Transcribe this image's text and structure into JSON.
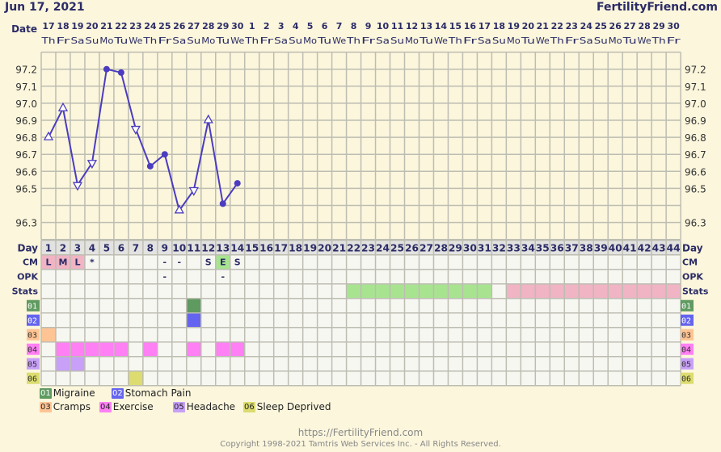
{
  "header": {
    "date_title": "Jun 17, 2021",
    "brand": "FertilityFriend.com"
  },
  "chart_data": {
    "type": "line",
    "title": "Jun 17, 2021",
    "date_label": "Date",
    "dates": [
      "17",
      "18",
      "19",
      "20",
      "21",
      "22",
      "23",
      "24",
      "25",
      "26",
      "27",
      "28",
      "29",
      "30",
      "1",
      "2",
      "3",
      "4",
      "5",
      "6",
      "7",
      "8",
      "9",
      "10",
      "11",
      "12",
      "13",
      "14",
      "15",
      "16",
      "17",
      "18",
      "19",
      "20",
      "21",
      "22",
      "23",
      "24",
      "25",
      "26",
      "27",
      "28",
      "29",
      "30"
    ],
    "weekdays": [
      "Th",
      "Fr",
      "Sa",
      "Su",
      "Mo",
      "Tu",
      "We",
      "Th",
      "Fr",
      "Sa",
      "Su",
      "Mo",
      "Tu",
      "We",
      "Th",
      "Fr",
      "Sa",
      "Su",
      "Mo",
      "Tu",
      "We",
      "Th",
      "Fr",
      "Sa",
      "Su",
      "Mo",
      "Tu",
      "We",
      "Th",
      "Fr",
      "Sa",
      "Su",
      "Mo",
      "Tu",
      "We",
      "Th",
      "Fr",
      "Sa",
      "Su",
      "Mo",
      "Tu",
      "We",
      "Th",
      "Fr"
    ],
    "ylim": [
      96.2,
      97.3
    ],
    "y_ticks": [
      "97.2",
      "97.1",
      "97.0",
      "96.9",
      "96.8",
      "96.7",
      "96.6",
      "96.5",
      "96.3"
    ],
    "temperatures": [
      96.8,
      96.97,
      96.52,
      96.65,
      97.2,
      97.18,
      96.85,
      96.63,
      96.7,
      96.37,
      96.49,
      96.9,
      96.41,
      96.53
    ],
    "markers": [
      "up",
      "up",
      "down",
      "down",
      "circle",
      "circle",
      "down",
      "circle",
      "circle",
      "up",
      "down",
      "up",
      "circle",
      "circle"
    ],
    "line_color": "#4b3cc0",
    "row_labels": {
      "day": "Day",
      "cm": "CM",
      "opk": "OPK",
      "stats": "Stats"
    },
    "day_count": 44,
    "cm": [
      {
        "day": 1,
        "value": "L",
        "bg": "#f0b4c4"
      },
      {
        "day": 2,
        "value": "M",
        "bg": "#f0b4c4"
      },
      {
        "day": 3,
        "value": "L",
        "bg": "#f0b4c4"
      },
      {
        "day": 4,
        "value": "*"
      },
      {
        "day": 9,
        "value": "-"
      },
      {
        "day": 10,
        "value": "-"
      },
      {
        "day": 12,
        "value": "S"
      },
      {
        "day": 13,
        "value": "E",
        "bg": "#a8e490"
      },
      {
        "day": 14,
        "value": "S"
      }
    ],
    "opk": [
      {
        "day": 9,
        "value": "-"
      },
      {
        "day": 13,
        "value": "-"
      }
    ],
    "stats": [
      {
        "from": 22,
        "to": 31,
        "color": "#a8e490"
      },
      {
        "from": 33,
        "to": 44,
        "color": "#f0b4c4"
      }
    ],
    "symptoms": [
      {
        "code": "01",
        "label": "Migraine",
        "color": "#5f9a60",
        "text": "#ffffff",
        "days": [
          11
        ]
      },
      {
        "code": "02",
        "label": "Stomach Pain",
        "color": "#6464f0",
        "text": "#ffffff",
        "days": [
          11
        ]
      },
      {
        "code": "03",
        "label": "Cramps",
        "color": "#ffc494",
        "text": "#333333",
        "days": [
          1
        ]
      },
      {
        "code": "04",
        "label": "Exercise",
        "color": "#ff80f4",
        "text": "#333333",
        "days": [
          2,
          3,
          4,
          5,
          6,
          8,
          11,
          13,
          14
        ]
      },
      {
        "code": "05",
        "label": "Headache",
        "color": "#c8a0f8",
        "text": "#333333",
        "days": [
          2,
          3
        ]
      },
      {
        "code": "06",
        "label": "Sleep Deprived",
        "color": "#dcdc70",
        "text": "#333333",
        "days": [
          7
        ]
      }
    ]
  },
  "footer": {
    "url": "https://FertilityFriend.com",
    "copyright": "Copyright 1998-2021 Tamtris Web Services Inc. - All Rights Reserved."
  }
}
